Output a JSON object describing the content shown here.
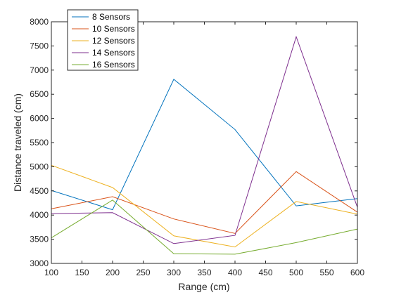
{
  "chart_data": {
    "type": "line",
    "title": "",
    "xlabel": "Range (cm)",
    "ylabel": "Distance traveled (cm)",
    "xlim": [
      100,
      600
    ],
    "ylim": [
      3000,
      8000
    ],
    "xticks": [
      100,
      150,
      200,
      250,
      300,
      350,
      400,
      450,
      500,
      550,
      600
    ],
    "yticks": [
      3000,
      3500,
      4000,
      4500,
      5000,
      5500,
      6000,
      6500,
      7000,
      7500,
      8000
    ],
    "grid": false,
    "legend_position": "top-left",
    "x": [
      100,
      200,
      300,
      400,
      500,
      600
    ],
    "series": [
      {
        "name": "8 Sensors",
        "color": "#0072BD",
        "values": [
          4510,
          4110,
          6810,
          5770,
          4190,
          4340
        ]
      },
      {
        "name": "10 Sensors",
        "color": "#D95319",
        "values": [
          4130,
          4380,
          3920,
          3620,
          4900,
          4060
        ]
      },
      {
        "name": "12 Sensors",
        "color": "#EDB120",
        "values": [
          5030,
          4570,
          3570,
          3340,
          4280,
          4020
        ]
      },
      {
        "name": "14 Sensors",
        "color": "#7E2F8E",
        "values": [
          4030,
          4050,
          3410,
          3580,
          7690,
          4160
        ]
      },
      {
        "name": "16 Sensors",
        "color": "#77AC30",
        "values": [
          3530,
          4310,
          3200,
          3190,
          3430,
          3710
        ]
      }
    ]
  }
}
